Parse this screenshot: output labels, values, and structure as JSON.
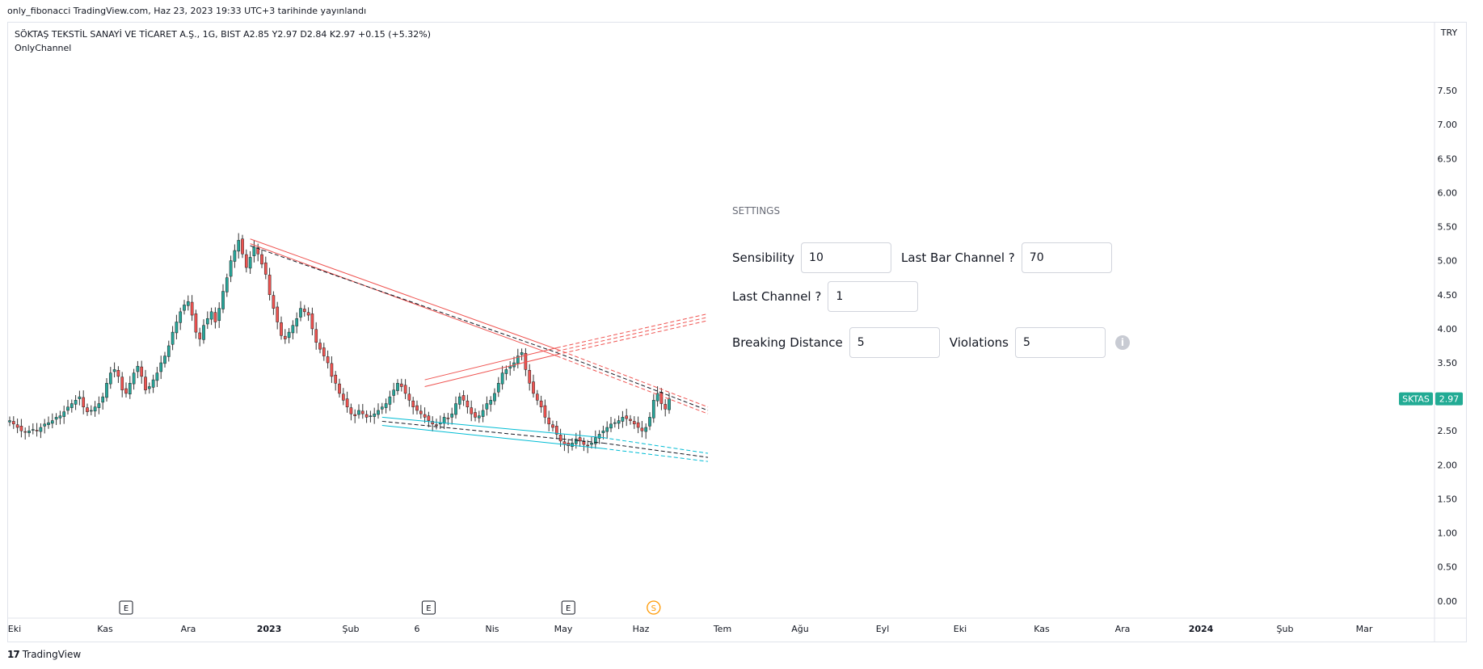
{
  "publication": "only_fibonacci TradingView.com, Haz 23, 2023 19:33 UTC+3 tarihinde yayınlandı",
  "legend": {
    "symbol_line": "SÖKTAŞ TEKSTİL SANAYİ VE TİCARET A.Ş., 1G, BIST  A2.85  Y2.97  D2.84  K2.97  +0.15 (+5.32%)",
    "indicator": "OnlyChannel"
  },
  "brand": {
    "logo": "17",
    "name": "TradingView"
  },
  "settings": {
    "title": "SETTINGS",
    "sensibility": {
      "label": "Sensibility",
      "value": "10"
    },
    "last_bar_channel": {
      "label": "Last Bar Channel ?",
      "value": "70"
    },
    "last_channel": {
      "label": "Last Channel ?",
      "value": "1"
    },
    "breaking_distance": {
      "label": "Breaking Distance",
      "value": "5"
    },
    "violations": {
      "label": "Violations",
      "value": "5"
    },
    "info_icon": "info-icon"
  },
  "chart_data": {
    "type": "candlestick",
    "currency": "TRY",
    "ylim": [
      -0.05,
      8.0
    ],
    "y_ticks": [
      "7.50",
      "7.00",
      "6.50",
      "6.00",
      "5.50",
      "5.00",
      "4.50",
      "4.00",
      "3.50",
      "3.00",
      "2.50",
      "2.00",
      "1.50",
      "1.00",
      "0.50",
      "0.00"
    ],
    "x_ticks": [
      {
        "label": "Eki",
        "bold": false
      },
      {
        "label": "Kas",
        "bold": false
      },
      {
        "label": "Ara",
        "bold": false
      },
      {
        "label": "2023",
        "bold": true
      },
      {
        "label": "Şub",
        "bold": false
      },
      {
        "label": "6",
        "bold": false
      },
      {
        "label": "Nis",
        "bold": false
      },
      {
        "label": "May",
        "bold": false
      },
      {
        "label": "Haz",
        "bold": false
      },
      {
        "label": "Tem",
        "bold": false
      },
      {
        "label": "Ağu",
        "bold": false
      },
      {
        "label": "Eyl",
        "bold": false
      },
      {
        "label": "Eki",
        "bold": false
      },
      {
        "label": "Kas",
        "bold": false
      },
      {
        "label": "Ara",
        "bold": false
      },
      {
        "label": "2024",
        "bold": true
      },
      {
        "label": "Şub",
        "bold": false
      },
      {
        "label": "Mar",
        "bold": false
      }
    ],
    "last_price": {
      "symbol": "SKTAS",
      "value": "2.97",
      "color": "#22ab94"
    },
    "up_color": "#26a69a",
    "down_color": "#ef5350",
    "events": [
      {
        "label": "E",
        "type": "earnings",
        "bar": 30
      },
      {
        "label": "E",
        "type": "earnings",
        "bar": 108
      },
      {
        "label": "E",
        "type": "earnings",
        "bar": 144
      },
      {
        "label": "S",
        "type": "split",
        "bar": 166
      }
    ],
    "closes": [
      2.65,
      2.6,
      2.55,
      2.5,
      2.48,
      2.5,
      2.52,
      2.5,
      2.55,
      2.6,
      2.62,
      2.65,
      2.7,
      2.72,
      2.78,
      2.85,
      2.9,
      2.95,
      3.0,
      2.85,
      2.78,
      2.8,
      2.85,
      2.9,
      3.0,
      3.2,
      3.35,
      3.4,
      3.3,
      3.1,
      3.05,
      3.2,
      3.35,
      3.45,
      3.3,
      3.1,
      3.15,
      3.25,
      3.35,
      3.5,
      3.6,
      3.75,
      3.95,
      4.1,
      4.25,
      4.35,
      4.4,
      4.2,
      3.95,
      3.85,
      4.05,
      4.15,
      4.25,
      4.1,
      4.3,
      4.55,
      4.75,
      5.0,
      5.15,
      5.3,
      5.1,
      4.9,
      5.05,
      5.2,
      5.1,
      4.95,
      4.8,
      4.5,
      4.3,
      4.1,
      3.9,
      3.85,
      3.95,
      4.05,
      4.15,
      4.3,
      4.25,
      4.2,
      4.0,
      3.8,
      3.7,
      3.6,
      3.5,
      3.3,
      3.2,
      3.05,
      2.95,
      2.85,
      2.75,
      2.72,
      2.8,
      2.75,
      2.7,
      2.72,
      2.75,
      2.8,
      2.85,
      2.9,
      3.0,
      3.1,
      3.2,
      3.15,
      3.05,
      2.95,
      2.85,
      2.8,
      2.75,
      2.7,
      2.65,
      2.6,
      2.58,
      2.62,
      2.7,
      2.68,
      2.75,
      2.9,
      3.0,
      2.95,
      2.85,
      2.75,
      2.7,
      2.72,
      2.8,
      2.9,
      2.95,
      3.05,
      3.2,
      3.35,
      3.4,
      3.45,
      3.5,
      3.6,
      3.65,
      3.4,
      3.2,
      3.05,
      2.95,
      2.85,
      2.7,
      2.6,
      2.55,
      2.45,
      2.35,
      2.3,
      2.28,
      2.32,
      2.38,
      2.35,
      2.3,
      2.28,
      2.32,
      2.4,
      2.45,
      2.5,
      2.55,
      2.6,
      2.62,
      2.65,
      2.7,
      2.68,
      2.65,
      2.6,
      2.55,
      2.5,
      2.55,
      2.7,
      2.95,
      3.05,
      2.9,
      2.82,
      2.97
    ],
    "channels": [
      {
        "name": "",
        "color": "#ef5350",
        "dashed": false,
        "from": [
          62,
          5.32
        ],
        "to": [
          141,
          3.7
        ]
      },
      {
        "name": "",
        "color": "#ef5350",
        "dashed": false,
        "from": [
          62,
          5.25
        ],
        "to": [
          141,
          3.6
        ]
      },
      {
        "name": "",
        "color": "#131722",
        "dashed": true,
        "from": [
          62,
          5.22
        ],
        "to": [
          141,
          3.65
        ]
      },
      {
        "name": "",
        "color": "#ef5350",
        "dashed": true,
        "from": [
          141,
          3.7
        ],
        "to": [
          180,
          2.85
        ]
      },
      {
        "name": "",
        "color": "#ef5350",
        "dashed": true,
        "from": [
          141,
          3.6
        ],
        "to": [
          180,
          2.75
        ]
      },
      {
        "name": "",
        "color": "#131722",
        "dashed": true,
        "from": [
          141,
          3.65
        ],
        "to": [
          180,
          2.8
        ]
      },
      {
        "name": "",
        "color": "#ef5350",
        "dashed": false,
        "from": [
          107,
          3.25
        ],
        "to": [
          141,
          3.72
        ]
      },
      {
        "name": "",
        "color": "#ef5350",
        "dashed": false,
        "from": [
          107,
          3.15
        ],
        "to": [
          141,
          3.62
        ]
      },
      {
        "name": "",
        "color": "#ef5350",
        "dashed": true,
        "from": [
          141,
          3.72
        ],
        "to": [
          180,
          4.22
        ]
      },
      {
        "name": "",
        "color": "#ef5350",
        "dashed": true,
        "from": [
          141,
          3.67
        ],
        "to": [
          180,
          4.17
        ]
      },
      {
        "name": "",
        "color": "#ef5350",
        "dashed": true,
        "from": [
          141,
          3.62
        ],
        "to": [
          180,
          4.12
        ]
      },
      {
        "name": "",
        "color": "#00bcd4",
        "dashed": false,
        "from": [
          96,
          2.7
        ],
        "to": [
          153,
          2.4
        ]
      },
      {
        "name": "",
        "color": "#00bcd4",
        "dashed": false,
        "from": [
          96,
          2.58
        ],
        "to": [
          153,
          2.24
        ]
      },
      {
        "name": "",
        "color": "#131722",
        "dashed": true,
        "from": [
          96,
          2.64
        ],
        "to": [
          153,
          2.32
        ]
      },
      {
        "name": "",
        "color": "#00bcd4",
        "dashed": true,
        "from": [
          153,
          2.4
        ],
        "to": [
          180,
          2.17
        ]
      },
      {
        "name": "",
        "color": "#00bcd4",
        "dashed": true,
        "from": [
          153,
          2.24
        ],
        "to": [
          180,
          2.05
        ]
      },
      {
        "name": "",
        "color": "#131722",
        "dashed": true,
        "from": [
          153,
          2.32
        ],
        "to": [
          180,
          2.11
        ]
      }
    ]
  }
}
